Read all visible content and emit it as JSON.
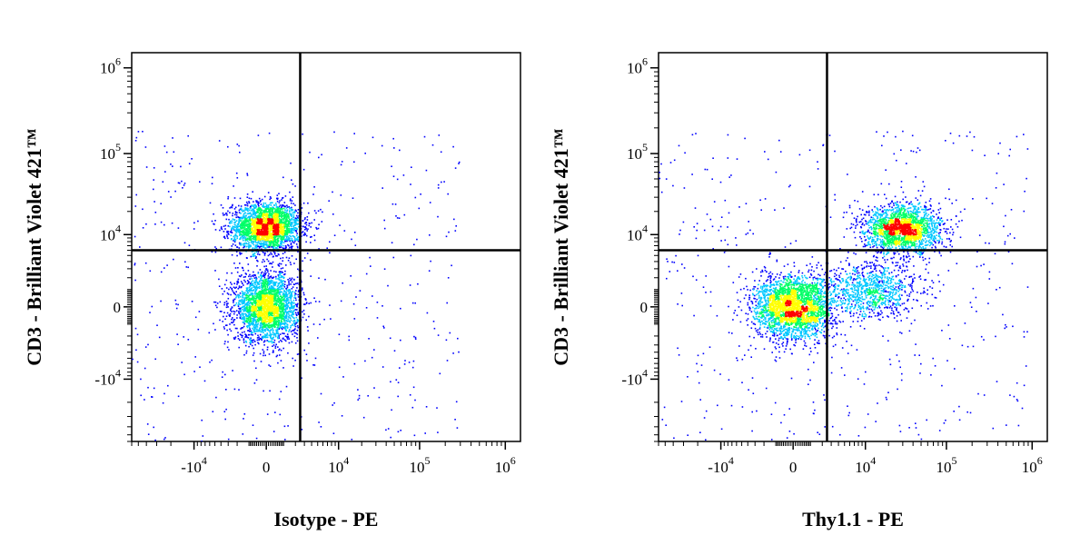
{
  "chart_data": [
    {
      "type": "scatter",
      "subtype": "flow-cytometry-density",
      "xlabel": "Isotype - PE",
      "ylabel": "CD3 - Brilliant Violet 421™",
      "x_scale": "biexponential",
      "y_scale": "biexponential",
      "x_ticks": [
        {
          "value": -10000,
          "base": "-10",
          "exp": "4"
        },
        {
          "value": 0,
          "base": "0",
          "exp": ""
        },
        {
          "value": 10000,
          "base": "10",
          "exp": "4"
        },
        {
          "value": 100000,
          "base": "10",
          "exp": "5"
        },
        {
          "value": 1000000,
          "base": "10",
          "exp": "6"
        }
      ],
      "y_ticks": [
        {
          "value": -10000,
          "base": "-10",
          "exp": "4"
        },
        {
          "value": 0,
          "base": "0",
          "exp": ""
        },
        {
          "value": 10000,
          "base": "10",
          "exp": "4"
        },
        {
          "value": 100000,
          "base": "10",
          "exp": "5"
        },
        {
          "value": 1000000,
          "base": "10",
          "exp": "6"
        }
      ],
      "gate": {
        "x": 2500,
        "y": 6000
      },
      "populations": [
        {
          "x": 0,
          "y": 13000,
          "spread_x": 2200,
          "spread_y": 0.25,
          "density": "high"
        },
        {
          "x": 0,
          "y": 0,
          "spread_x": 2000,
          "spread_y": 2200,
          "density": "high"
        }
      ],
      "density_colors": [
        "#0000ff",
        "#00c8ff",
        "#00ff66",
        "#ffff00",
        "#ff0000"
      ]
    },
    {
      "type": "scatter",
      "subtype": "flow-cytometry-density",
      "xlabel": "Thy1.1 - PE",
      "ylabel": "CD3 - Brilliant Violet 421™",
      "x_scale": "biexponential",
      "y_scale": "biexponential",
      "x_ticks": [
        {
          "value": -10000,
          "base": "-10",
          "exp": "4"
        },
        {
          "value": 0,
          "base": "0",
          "exp": ""
        },
        {
          "value": 10000,
          "base": "10",
          "exp": "4"
        },
        {
          "value": 100000,
          "base": "10",
          "exp": "5"
        },
        {
          "value": 1000000,
          "base": "10",
          "exp": "6"
        }
      ],
      "y_ticks": [
        {
          "value": -10000,
          "base": "-10",
          "exp": "4"
        },
        {
          "value": 0,
          "base": "0",
          "exp": ""
        },
        {
          "value": 10000,
          "base": "10",
          "exp": "4"
        },
        {
          "value": 100000,
          "base": "10",
          "exp": "5"
        },
        {
          "value": 1000000,
          "base": "10",
          "exp": "6"
        }
      ],
      "gate": {
        "x": 2500,
        "y": 6000
      },
      "populations": [
        {
          "x": 0,
          "y": 0,
          "spread_x": 2800,
          "spread_y": 2000,
          "density": "high"
        },
        {
          "x": 30000,
          "y": 12000,
          "spread_x": 0.4,
          "spread_y": 0.25,
          "density": "medium"
        },
        {
          "x": 12000,
          "y": 1000,
          "spread_x": 0.5,
          "spread_y": 2500,
          "density": "low"
        }
      ],
      "density_colors": [
        "#0000ff",
        "#00c8ff",
        "#00ff66",
        "#ffff00",
        "#ff0000"
      ]
    }
  ]
}
